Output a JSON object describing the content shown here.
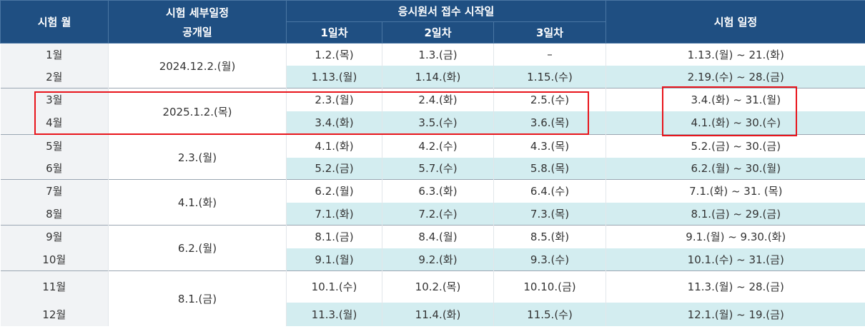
{
  "header": {
    "month": "시험 월",
    "detail_line1": "시험 세부일정",
    "detail_line2": "공개일",
    "application": "응시원서 접수 시작일",
    "day1": "1일차",
    "day2": "2일차",
    "day3": "3일차",
    "exam": "시험 일정"
  },
  "groups": [
    {
      "release": "2024.12.2.(월)",
      "rows": [
        {
          "month": "1월",
          "d1": "1.2.(목)",
          "d2": "1.3.(금)",
          "d3": "–",
          "exam": "1.13.(월) ~ 21.(화)"
        },
        {
          "month": "2월",
          "d1": "1.13.(월)",
          "d2": "1.14.(화)",
          "d3": "1.15.(수)",
          "exam": "2.19.(수) ~ 28.(금)"
        }
      ]
    },
    {
      "release": "2025.1.2.(목)",
      "rows": [
        {
          "month": "3월",
          "d1": "2.3.(월)",
          "d2": "2.4.(화)",
          "d3": "2.5.(수)",
          "exam": "3.4.(화) ~ 31.(월)"
        },
        {
          "month": "4월",
          "d1": "3.4.(화)",
          "d2": "3.5.(수)",
          "d3": "3.6.(목)",
          "exam": "4.1.(화) ~ 30.(수)"
        }
      ]
    },
    {
      "release": "2.3.(월)",
      "rows": [
        {
          "month": "5월",
          "d1": "4.1.(화)",
          "d2": "4.2.(수)",
          "d3": "4.3.(목)",
          "exam": "5.2.(금) ~ 30.(금)"
        },
        {
          "month": "6월",
          "d1": "5.2.(금)",
          "d2": "5.7.(수)",
          "d3": "5.8.(목)",
          "exam": "6.2.(월) ~ 30.(월)"
        }
      ]
    },
    {
      "release": "4.1.(화)",
      "rows": [
        {
          "month": "7월",
          "d1": "6.2.(월)",
          "d2": "6.3.(화)",
          "d3": "6.4.(수)",
          "exam": "7.1.(화) ~ 31. (목)"
        },
        {
          "month": "8월",
          "d1": "7.1.(화)",
          "d2": "7.2.(수)",
          "d3": "7.3.(목)",
          "exam": "8.1.(금) ~ 29.(금)"
        }
      ]
    },
    {
      "release": "6.2.(월)",
      "rows": [
        {
          "month": "9월",
          "d1": "8.1.(금)",
          "d2": "8.4.(월)",
          "d3": "8.5.(화)",
          "exam": "9.1.(월) ~ 9.30.(화)"
        },
        {
          "month": "10월",
          "d1": "9.1.(월)",
          "d2": "9.2.(화)",
          "d3": "9.3.(수)",
          "exam": "10.1.(수) ~ 31.(금)"
        }
      ]
    },
    {
      "release": "8.1.(금)",
      "rows": [
        {
          "month": "11월",
          "d1": "10.1.(수)",
          "d2": "10.2.(목)",
          "d3": "10.10.(금)",
          "exam": "11.3.(월) ~ 28.(금)"
        },
        {
          "month": "12월",
          "d1": "11.3.(월)",
          "d2": "11.4.(화)",
          "d3": "11.5.(수)",
          "exam": "12.1.(월) ~ 19.(금)"
        }
      ]
    }
  ],
  "colors": {
    "header_bg": "#1f4f82",
    "teal_row": "#d3edf0",
    "month_col": "#f1f3f5",
    "highlight": "#e8141b"
  }
}
